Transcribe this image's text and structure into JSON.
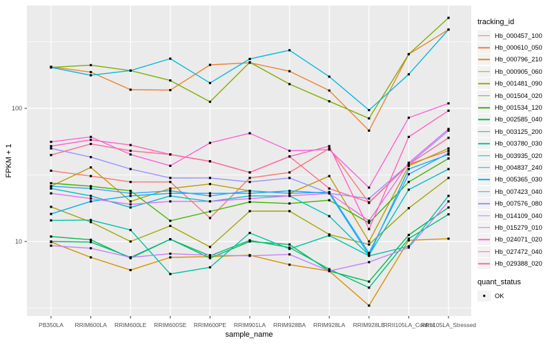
{
  "window": {
    "type": "ggplot-fpkm-expression-plot"
  },
  "axes": {
    "x": {
      "label": "sample_name"
    },
    "y": {
      "label": "FPKM + 1",
      "scale": "log10",
      "tick_labels": [
        "100",
        "10"
      ],
      "tick_values": [
        100,
        10
      ]
    }
  },
  "legend": {
    "tracking_title": "tracking_id",
    "quant_title": "quant_status",
    "quant_ok_label": "OK",
    "quant_marker": "black-square",
    "quant_marker_color": "#000000"
  },
  "style": {
    "figure_background": "#FFFFFF",
    "panel_background": "#EBEBEB",
    "grid_color": "#FFFFFF",
    "axis_text_color": "#4D4D4D",
    "tick_mark_color": "#333333",
    "legend_key_background": "#F2F2F2",
    "marker_color": "#000000"
  },
  "chart_data": {
    "type": "line",
    "title": "",
    "xlabel": "sample_name",
    "ylabel": "FPKM + 1",
    "y_scale": "log10",
    "ylim": [
      2.8,
      520
    ],
    "y_major_gridlines": [
      10,
      100
    ],
    "y_minor_gridlines": [
      3.162,
      31.62,
      316.2
    ],
    "grid": "white major and minor gridlines on gray panel",
    "legend_position": "right",
    "point_marker": "small filled black square at every data point (quant_status = OK)",
    "categories": [
      "PB350LA",
      "RRIM600LA",
      "RRIM600LE",
      "RRIM600SE",
      "RRIM600PE",
      "RRIM901LA",
      "RRIM928BA",
      "RRIM928LA",
      "RRIM928LE",
      "RRII105LA_Control",
      "RRII105LA_Stressed"
    ],
    "series": [
      {
        "name": "Hb_000457_100",
        "color": "#F8766D",
        "values": [
          34,
          31,
          28,
          28,
          15,
          30,
          33,
          50,
          19.5,
          38,
          48
        ]
      },
      {
        "name": "Hb_000610_050",
        "color": "#EA8331",
        "values": [
          205,
          187,
          138,
          137,
          212,
          220,
          190,
          136,
          68,
          255,
          390
        ]
      },
      {
        "name": "Hb_000796_210",
        "color": "#D89000",
        "values": [
          9.9,
          7.6,
          6.1,
          7.6,
          7.7,
          7.9,
          6.7,
          6.0,
          3.3,
          10.2,
          10.5
        ]
      },
      {
        "name": "Hb_000905_060",
        "color": "#C09B00",
        "values": [
          26,
          36,
          20,
          25,
          27,
          24,
          23,
          31,
          10,
          37,
          50
        ]
      },
      {
        "name": "Hb_001481_090",
        "color": "#A3A500",
        "values": [
          18.2,
          14,
          10,
          13.1,
          9.1,
          16.9,
          16.9,
          11.3,
          9.5,
          17.8,
          30
        ]
      },
      {
        "name": "Hb_001504_020",
        "color": "#7CAE00",
        "values": [
          203,
          211,
          192,
          162,
          112,
          222,
          152,
          113,
          84,
          255,
          478
        ]
      },
      {
        "name": "Hb_001534_120",
        "color": "#39B600",
        "values": [
          27.4,
          26,
          24,
          14.3,
          16.8,
          19.8,
          19.3,
          20.4,
          13.8,
          28,
          42
        ]
      },
      {
        "name": "Hb_002585_040",
        "color": "#00BB4E",
        "values": [
          10.9,
          10.3,
          7.5,
          10.4,
          7.5,
          10.0,
          9.5,
          6.0,
          5.0,
          11.2,
          18
        ]
      },
      {
        "name": "Hb_003125_200",
        "color": "#00BF7D",
        "values": [
          10.0,
          9.9,
          7.6,
          10.4,
          7.8,
          10.2,
          9.0,
          6.2,
          4.5,
          10.5,
          16
        ]
      },
      {
        "name": "Hb_003780_030",
        "color": "#00C1A3",
        "values": [
          14.4,
          14.5,
          12.2,
          5.7,
          6.4,
          11.6,
          8.8,
          11.1,
          7.8,
          9.2,
          22
        ]
      },
      {
        "name": "Hb_003935_020",
        "color": "#00BFC4",
        "values": [
          25,
          22,
          18,
          22,
          20,
          22,
          22,
          15.5,
          7.9,
          24.5,
          35
        ]
      },
      {
        "name": "Hb_004837_240",
        "color": "#00BAE0",
        "values": [
          203,
          177,
          192,
          236,
          155,
          235,
          273,
          173,
          97,
          180,
          390
        ]
      },
      {
        "name": "Hb_005365_030",
        "color": "#00B0F6",
        "values": [
          16.1,
          20,
          22,
          23,
          23,
          23,
          24,
          23,
          7.9,
          35,
          45
        ]
      },
      {
        "name": "Hb_007423_040",
        "color": "#35A2FF",
        "values": [
          26,
          25,
          23,
          24,
          22,
          24,
          23,
          23.5,
          8.2,
          32,
          46
        ]
      },
      {
        "name": "Hb_007576_080",
        "color": "#9590FF",
        "values": [
          50,
          43,
          35,
          30,
          30,
          28,
          30,
          23,
          21,
          38,
          68
        ]
      },
      {
        "name": "Hb_014109_040",
        "color": "#C77CFF",
        "values": [
          9.3,
          8.9,
          7.6,
          8.1,
          7.9,
          7.8,
          8.0,
          6.0,
          7.0,
          9.0,
          20
        ]
      },
      {
        "name": "Hb_015279_010",
        "color": "#E76BF3",
        "values": [
          23,
          21,
          19,
          20,
          20,
          21,
          22,
          23,
          14.3,
          39,
          70
        ]
      },
      {
        "name": "Hb_024071_020",
        "color": "#FA62DB",
        "values": [
          56,
          61,
          45,
          37,
          55,
          65,
          48,
          49,
          25.4,
          85,
          109
        ]
      },
      {
        "name": "Hb_027472_040",
        "color": "#FF62BC",
        "values": [
          52,
          58,
          53,
          45,
          40,
          33,
          43.5,
          52,
          12.4,
          61,
          96
        ]
      },
      {
        "name": "Hb_029388_020",
        "color": "#FF6A98",
        "values": [
          44.6,
          54,
          48,
          45,
          40,
          33,
          43.5,
          25,
          19.7,
          38,
          60
        ]
      }
    ]
  }
}
